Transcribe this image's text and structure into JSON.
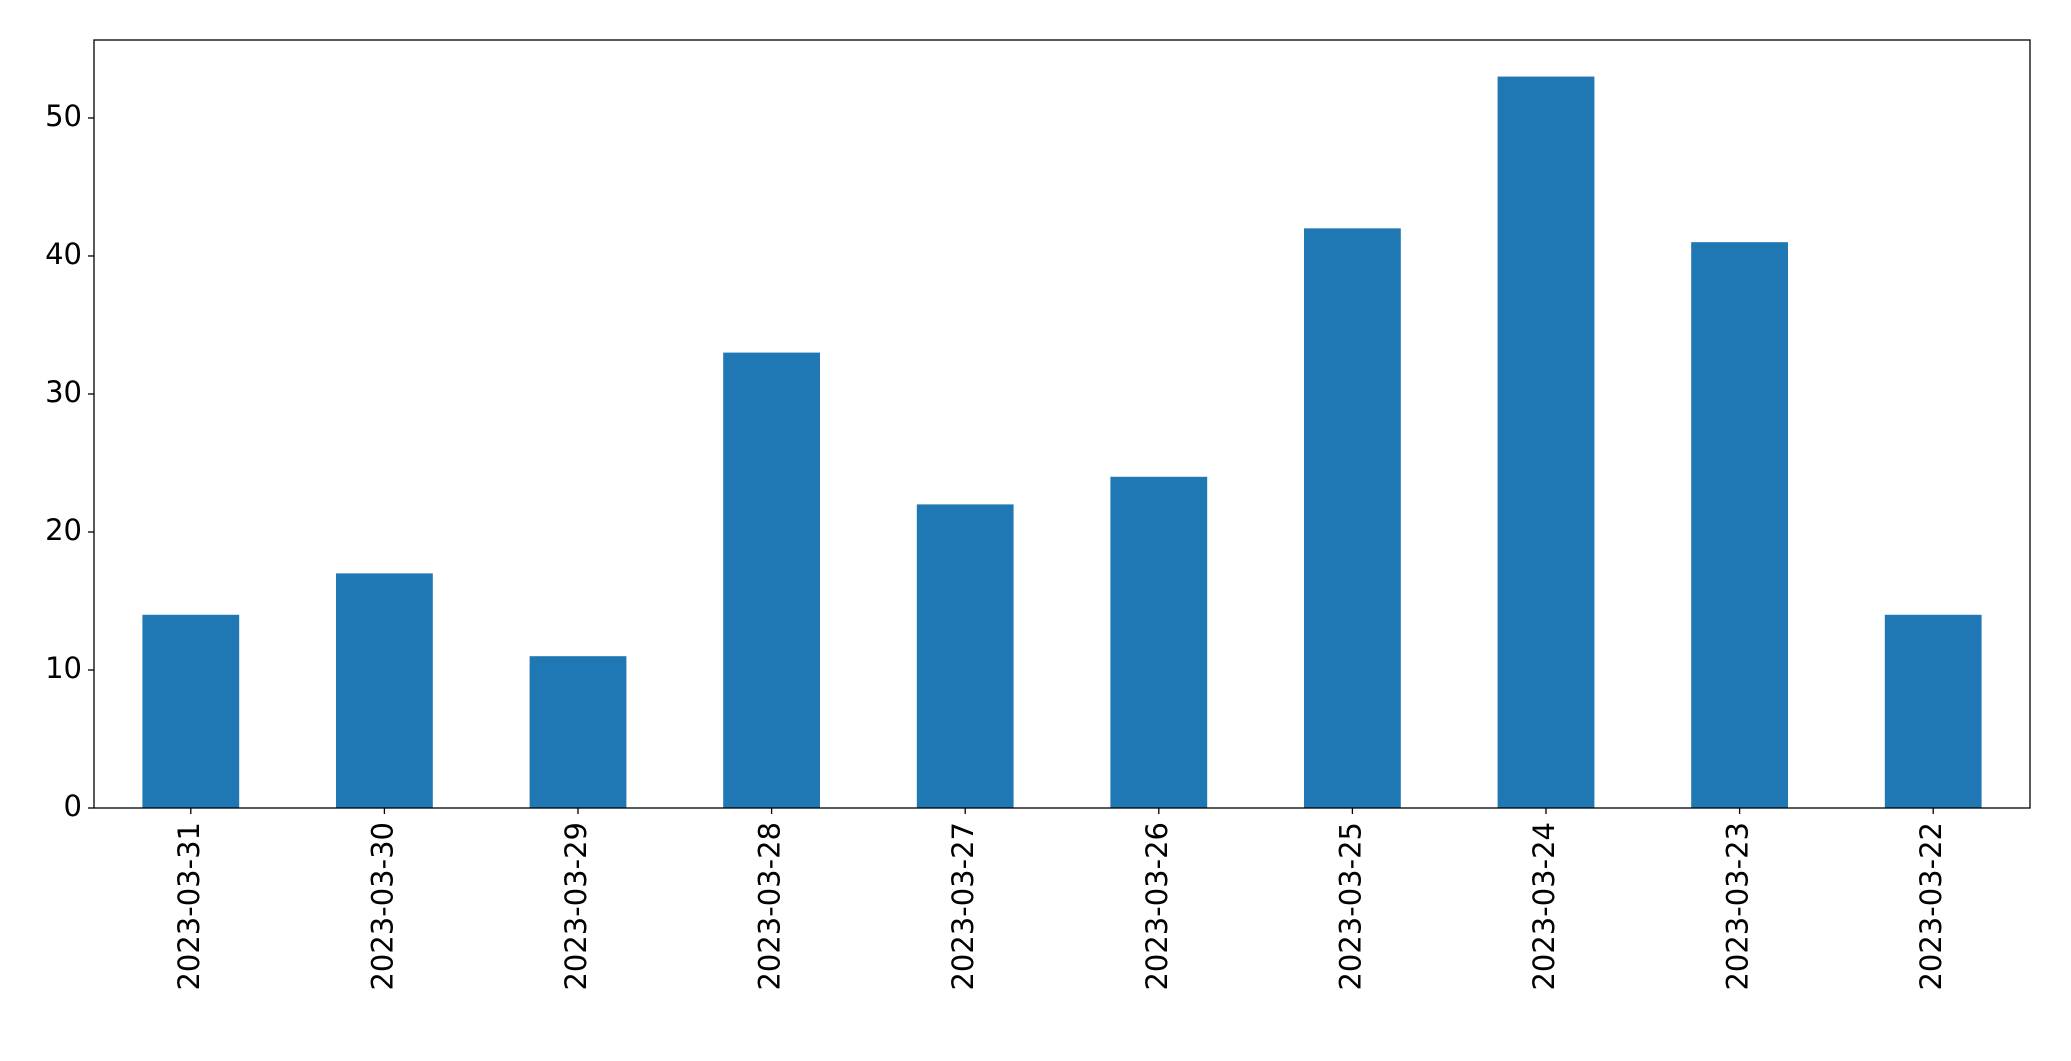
{
  "chart_data": {
    "type": "bar",
    "categories": [
      "2023-03-31",
      "2023-03-30",
      "2023-03-29",
      "2023-03-28",
      "2023-03-27",
      "2023-03-26",
      "2023-03-25",
      "2023-03-24",
      "2023-03-23",
      "2023-03-22"
    ],
    "values": [
      14,
      17,
      11,
      33,
      22,
      24,
      42,
      53,
      41,
      14
    ],
    "color": "#1f77b4",
    "ylim": [
      0,
      55.65
    ],
    "yticks": [
      0,
      10,
      20,
      30,
      40,
      50
    ],
    "grid": false
  }
}
